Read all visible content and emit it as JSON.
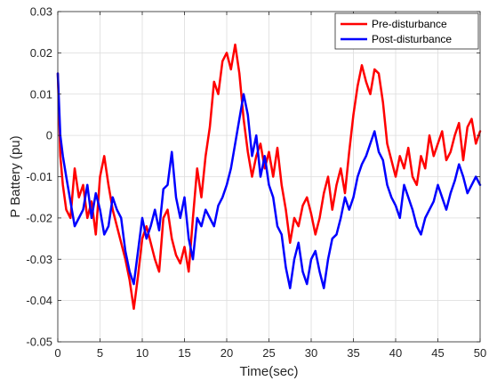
{
  "chart_data": {
    "type": "line",
    "title": "",
    "xlabel": "Time(sec)",
    "ylabel": "P Battery (pu)",
    "xlim": [
      0,
      50
    ],
    "ylim": [
      -0.05,
      0.03
    ],
    "xticks": [
      "0",
      "5",
      "10",
      "15",
      "20",
      "25",
      "30",
      "35",
      "40",
      "45",
      "50"
    ],
    "yticks": [
      "0.03",
      "0.02",
      "0.01",
      "0",
      "-0.01",
      "-0.02",
      "-0.03",
      "-0.04",
      "-0.05"
    ],
    "grid": true,
    "legend_position": "top-right",
    "series": [
      {
        "name": "Pre-disturbance",
        "color": "#ff0000",
        "x": [
          0,
          0.3,
          0.6,
          1,
          1.5,
          2,
          2.5,
          3,
          3.5,
          4,
          4.5,
          5,
          5.5,
          6,
          6.5,
          7,
          7.5,
          8,
          8.5,
          9,
          9.5,
          10,
          10.5,
          11,
          11.5,
          12,
          12.5,
          13,
          13.5,
          14,
          14.5,
          15,
          15.5,
          16,
          16.5,
          17,
          17.5,
          18,
          18.5,
          19,
          19.5,
          20,
          20.5,
          21,
          21.5,
          22,
          22.5,
          23,
          23.5,
          24,
          24.5,
          25,
          25.5,
          26,
          26.5,
          27,
          27.5,
          28,
          28.5,
          29,
          29.5,
          30,
          30.5,
          31,
          31.5,
          32,
          32.5,
          33,
          33.5,
          34,
          34.5,
          35,
          35.5,
          36,
          36.5,
          37,
          37.5,
          38,
          38.5,
          39,
          39.5,
          40,
          40.5,
          41,
          41.5,
          42,
          42.5,
          43,
          43.5,
          44,
          44.5,
          45,
          45.5,
          46,
          46.5,
          47,
          47.5,
          48,
          48.5,
          49,
          49.5,
          50
        ],
        "y": [
          0.015,
          -0.005,
          -0.012,
          -0.018,
          -0.02,
          -0.008,
          -0.015,
          -0.012,
          -0.02,
          -0.016,
          -0.024,
          -0.01,
          -0.005,
          -0.012,
          -0.018,
          -0.022,
          -0.026,
          -0.03,
          -0.035,
          -0.042,
          -0.034,
          -0.025,
          -0.022,
          -0.026,
          -0.03,
          -0.033,
          -0.02,
          -0.018,
          -0.025,
          -0.029,
          -0.031,
          -0.027,
          -0.033,
          -0.02,
          -0.008,
          -0.015,
          -0.005,
          0.002,
          0.013,
          0.01,
          0.018,
          0.02,
          0.016,
          0.022,
          0.015,
          0.004,
          -0.004,
          -0.01,
          -0.005,
          -0.002,
          -0.008,
          -0.004,
          -0.01,
          -0.003,
          -0.012,
          -0.018,
          -0.026,
          -0.02,
          -0.022,
          -0.017,
          -0.015,
          -0.019,
          -0.024,
          -0.02,
          -0.014,
          -0.01,
          -0.018,
          -0.012,
          -0.008,
          -0.014,
          -0.004,
          0.005,
          0.012,
          0.017,
          0.013,
          0.01,
          0.016,
          0.015,
          0.008,
          -0.002,
          -0.006,
          -0.01,
          -0.005,
          -0.008,
          -0.003,
          -0.01,
          -0.012,
          -0.005,
          -0.008,
          0.0,
          -0.005,
          -0.002,
          0.001,
          -0.006,
          -0.004,
          0.0,
          0.003,
          -0.006,
          0.002,
          0.004,
          -0.002,
          0.001
        ]
      },
      {
        "name": "Post-disturbance",
        "color": "#0000ff",
        "x": [
          0,
          0.3,
          0.6,
          1,
          1.5,
          2,
          2.5,
          3,
          3.5,
          4,
          4.5,
          5,
          5.5,
          6,
          6.5,
          7,
          7.5,
          8,
          8.5,
          9,
          9.5,
          10,
          10.5,
          11,
          11.5,
          12,
          12.5,
          13,
          13.5,
          14,
          14.5,
          15,
          15.5,
          16,
          16.5,
          17,
          17.5,
          18,
          18.5,
          19,
          19.5,
          20,
          20.5,
          21,
          21.5,
          22,
          22.5,
          23,
          23.5,
          24,
          24.5,
          25,
          25.5,
          26,
          26.5,
          27,
          27.5,
          28,
          28.5,
          29,
          29.5,
          30,
          30.5,
          31,
          31.5,
          32,
          32.5,
          33,
          33.5,
          34,
          34.5,
          35,
          35.5,
          36,
          36.5,
          37,
          37.5,
          38,
          38.5,
          39,
          39.5,
          40,
          40.5,
          41,
          41.5,
          42,
          42.5,
          43,
          43.5,
          44,
          44.5,
          45,
          45.5,
          46,
          46.5,
          47,
          47.5,
          48,
          48.5,
          49,
          49.5,
          50
        ],
        "y": [
          0.015,
          0.0,
          -0.005,
          -0.01,
          -0.016,
          -0.022,
          -0.02,
          -0.018,
          -0.012,
          -0.02,
          -0.014,
          -0.018,
          -0.024,
          -0.022,
          -0.015,
          -0.018,
          -0.02,
          -0.028,
          -0.033,
          -0.036,
          -0.028,
          -0.02,
          -0.025,
          -0.022,
          -0.018,
          -0.023,
          -0.013,
          -0.012,
          -0.004,
          -0.015,
          -0.02,
          -0.015,
          -0.025,
          -0.03,
          -0.02,
          -0.022,
          -0.018,
          -0.02,
          -0.022,
          -0.017,
          -0.015,
          -0.012,
          -0.008,
          -0.002,
          0.004,
          0.01,
          0.005,
          -0.005,
          0.0,
          -0.01,
          -0.005,
          -0.012,
          -0.015,
          -0.022,
          -0.024,
          -0.032,
          -0.037,
          -0.03,
          -0.026,
          -0.033,
          -0.036,
          -0.03,
          -0.028,
          -0.033,
          -0.037,
          -0.03,
          -0.025,
          -0.024,
          -0.02,
          -0.015,
          -0.018,
          -0.015,
          -0.01,
          -0.007,
          -0.005,
          -0.002,
          0.001,
          -0.004,
          -0.006,
          -0.012,
          -0.015,
          -0.017,
          -0.02,
          -0.012,
          -0.015,
          -0.018,
          -0.022,
          -0.024,
          -0.02,
          -0.018,
          -0.016,
          -0.012,
          -0.015,
          -0.018,
          -0.014,
          -0.011,
          -0.007,
          -0.01,
          -0.014,
          -0.012,
          -0.01,
          -0.012
        ]
      }
    ]
  }
}
